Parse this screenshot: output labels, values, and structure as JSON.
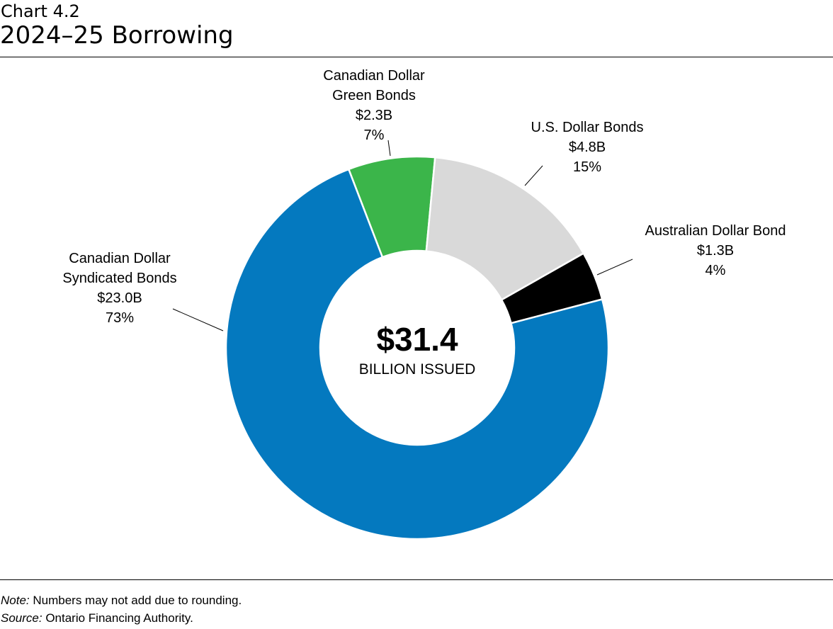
{
  "header": {
    "chart_number": "Chart 4.2",
    "title": "2024–25 Borrowing"
  },
  "chart_data": {
    "type": "pie",
    "variant": "donut",
    "title": "2024–25 Borrowing",
    "center_label": {
      "value": "$31.4",
      "caption": "BILLION ISSUED"
    },
    "slices": [
      {
        "name": "Canadian Dollar Green Bonds",
        "lines": [
          "Canadian Dollar",
          "Green Bonds"
        ],
        "value": 2.3,
        "value_label": "$2.3B",
        "percent": "7%",
        "color": "#3bb54a"
      },
      {
        "name": "U.S. Dollar Bonds",
        "lines": [
          "U.S. Dollar Bonds"
        ],
        "value": 4.8,
        "value_label": "$4.8B",
        "percent": "15%",
        "color": "#d9d9d9"
      },
      {
        "name": "Australian Dollar Bond",
        "lines": [
          "Australian Dollar Bond"
        ],
        "value": 1.3,
        "value_label": "$1.3B",
        "percent": "4%",
        "color": "#000000"
      },
      {
        "name": "Canadian Dollar Syndicated Bonds",
        "lines": [
          "Canadian Dollar",
          "Syndicated Bonds"
        ],
        "value": 23.0,
        "value_label": "$23.0B",
        "percent": "73%",
        "color": "#0479bf"
      }
    ]
  },
  "footer": {
    "note_label": "Note:",
    "note": " Numbers may not add due to rounding.",
    "source_label": "Source:",
    "source": " Ontario Financing Authority."
  }
}
